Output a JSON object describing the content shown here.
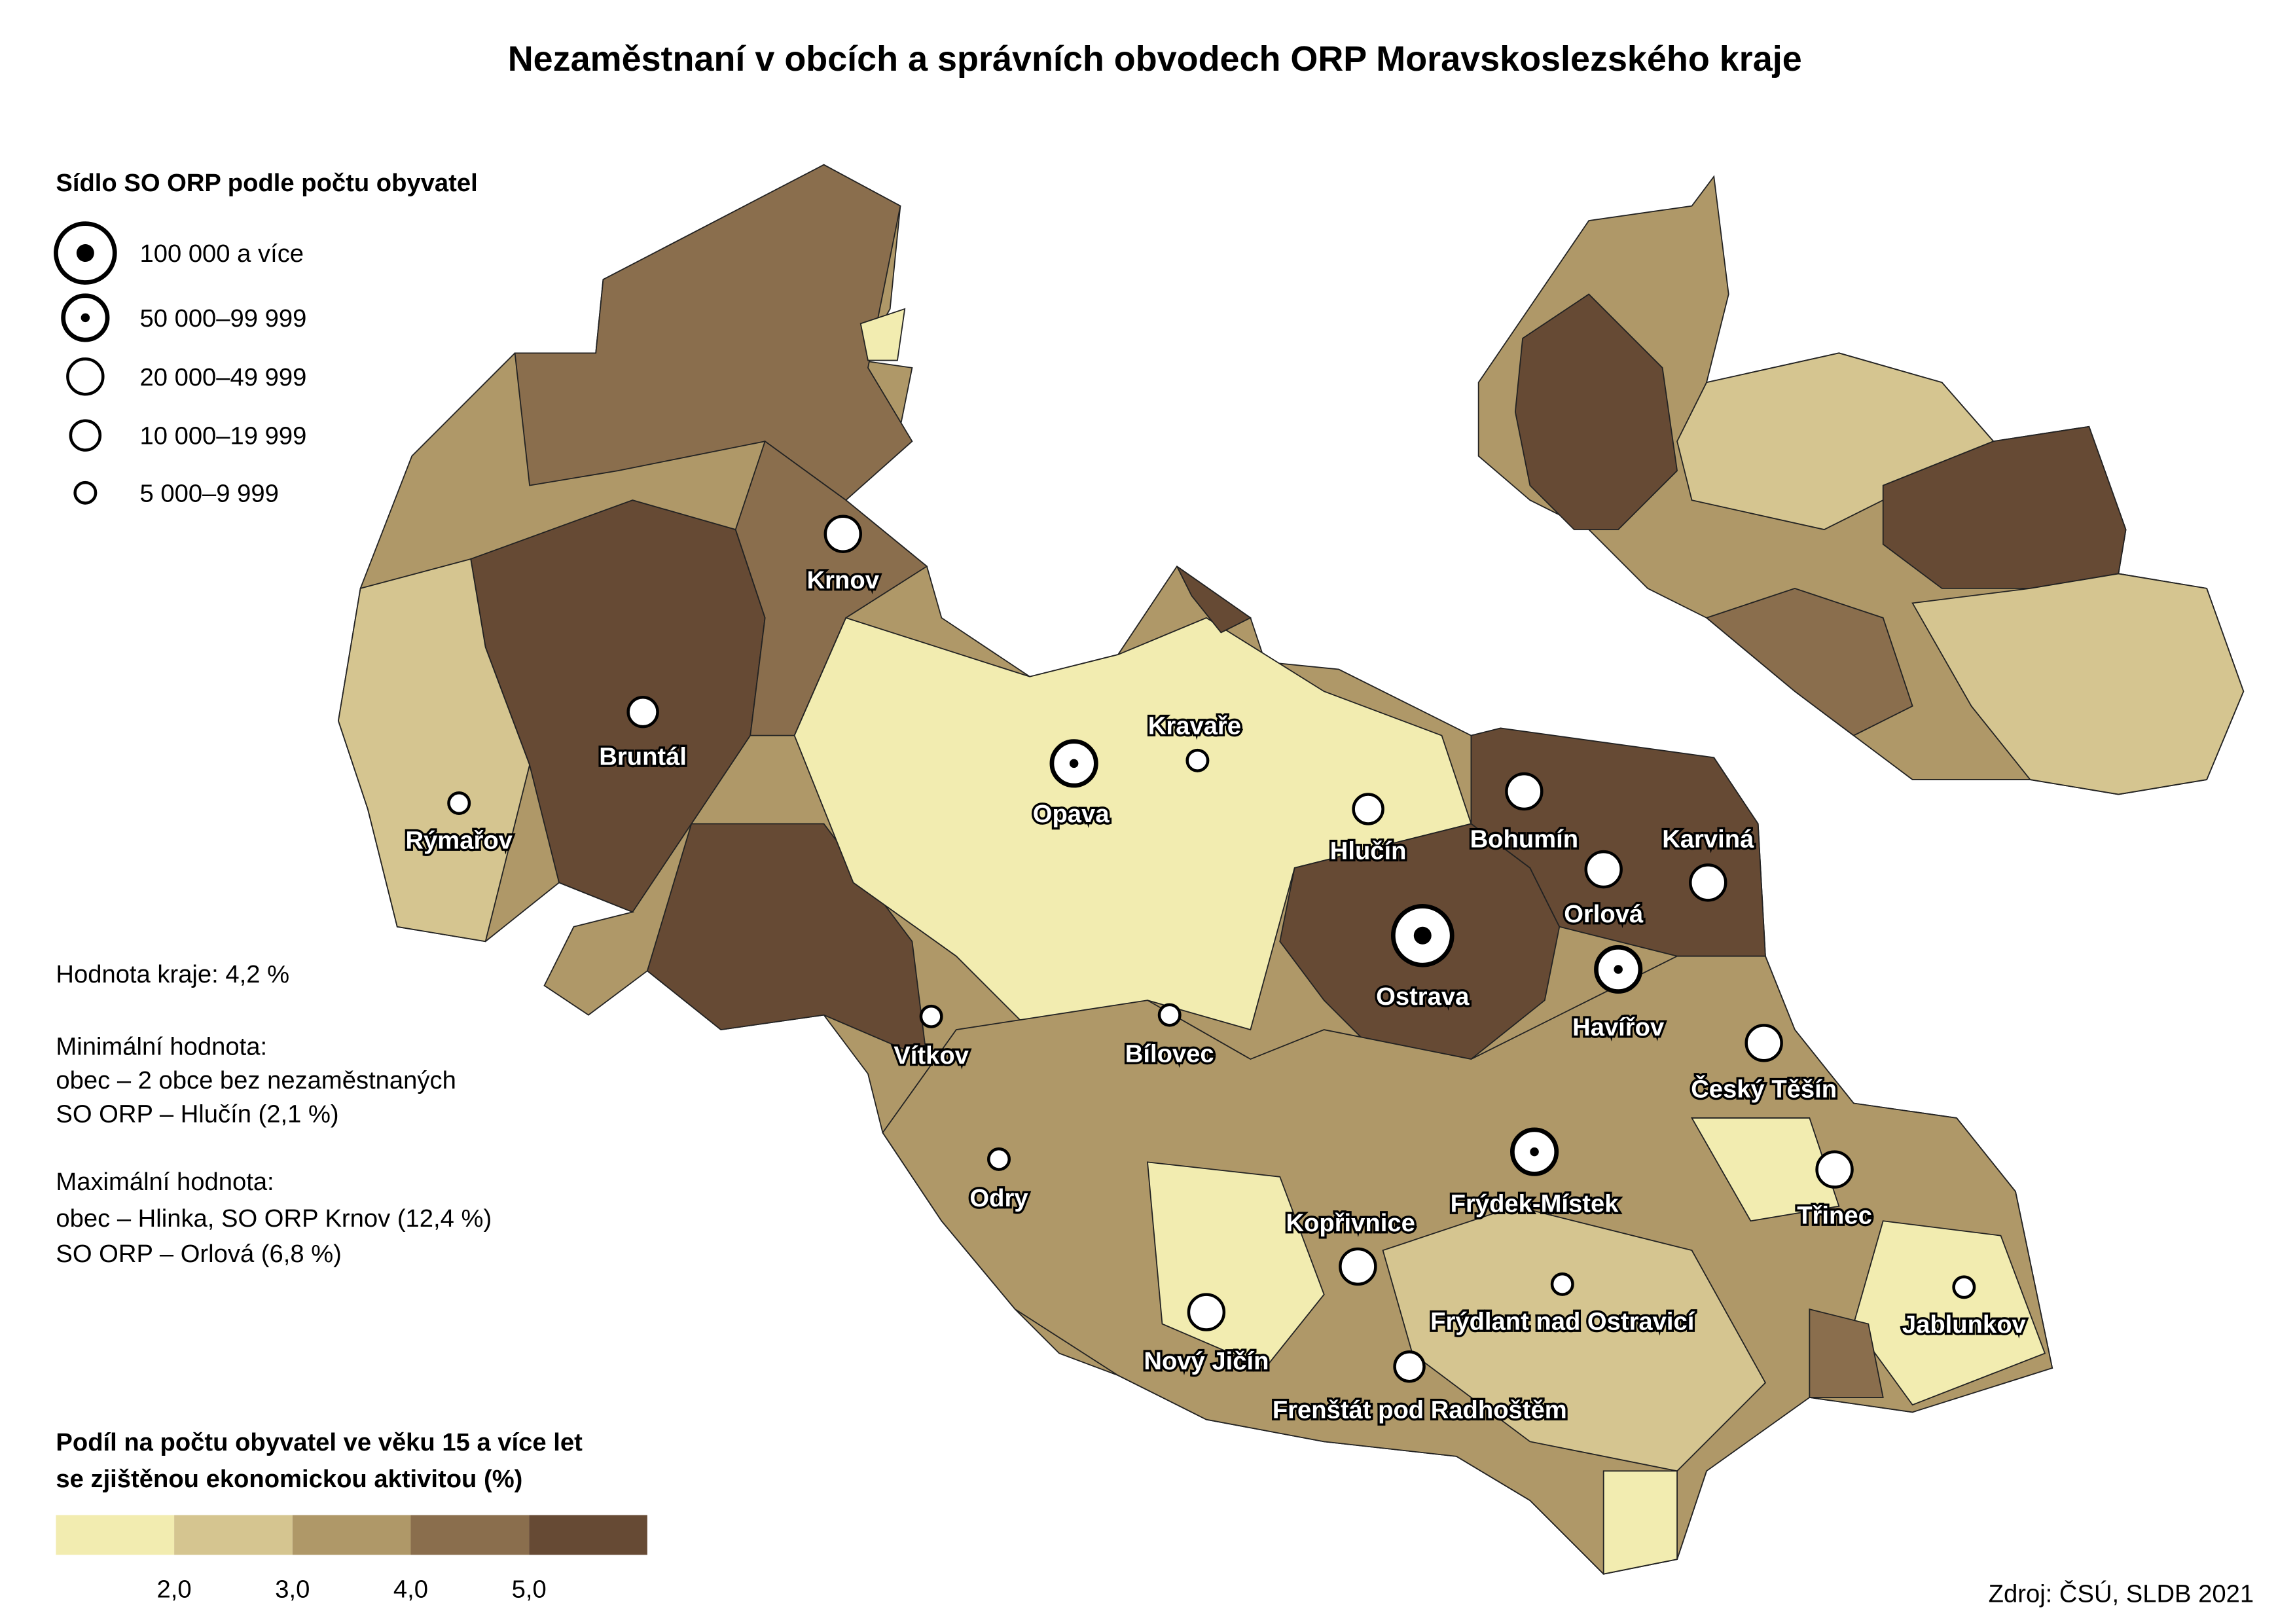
{
  "title": "Nezaměstnaní v obcích a správních obvodech ORP Moravskoslezského kraje",
  "symbol_legend": {
    "title": "Sídlo SO ORP podle počtu obyvatel",
    "items": [
      "100 000 a více",
      "50 000–99 999",
      "20 000–49 999",
      "10 000–19 999",
      "5 000–9 999"
    ]
  },
  "stats": {
    "region_value": "Hodnota kraje: 4,2 %",
    "min_title": "Minimální hodnota:",
    "min_lines": [
      "obec – 2 obce bez nezaměstnaných",
      "SO ORP – Hlučín (2,1 %)"
    ],
    "max_title": "Maximální hodnota:",
    "max_lines": [
      "obec – Hlinka, SO ORP Krnov (12,4 %)",
      "SO ORP – Orlová (6,8 %)"
    ]
  },
  "color_legend": {
    "title_lines": [
      "Podíl na počtu obyvatel ve věku 15 a více let",
      "se zjištěnou ekonomickou aktivitou (%)"
    ],
    "colors": [
      "#f2ecb0",
      "#d5c590",
      "#af9868",
      "#8a6e4d",
      "#664a34"
    ],
    "breaks": [
      {
        "value": 2,
        "label": "2,0"
      },
      {
        "value": 3,
        "label": "3,0"
      },
      {
        "value": 4,
        "label": "4,0"
      },
      {
        "value": 5,
        "label": "5,0"
      }
    ]
  },
  "places": [
    "Krnov",
    "Bruntál",
    "Rýmařov",
    "Opava",
    "Kravaře",
    "Hlučín",
    "Bohumín",
    "Karviná",
    "Orlová",
    "Ostrava",
    "Havířov",
    "Český Těšín",
    "Vítkov",
    "Bílovec",
    "Odry",
    "Třinec",
    "Frýdek-Místek",
    "Kopřivnice",
    "Frýdlant nad Ostravicí",
    "Jablunkov",
    "Nový Jičín",
    "Frenštát pod Radhoštěm"
  ],
  "source": "Zdroj: ČSÚ, SLDB 2021"
}
